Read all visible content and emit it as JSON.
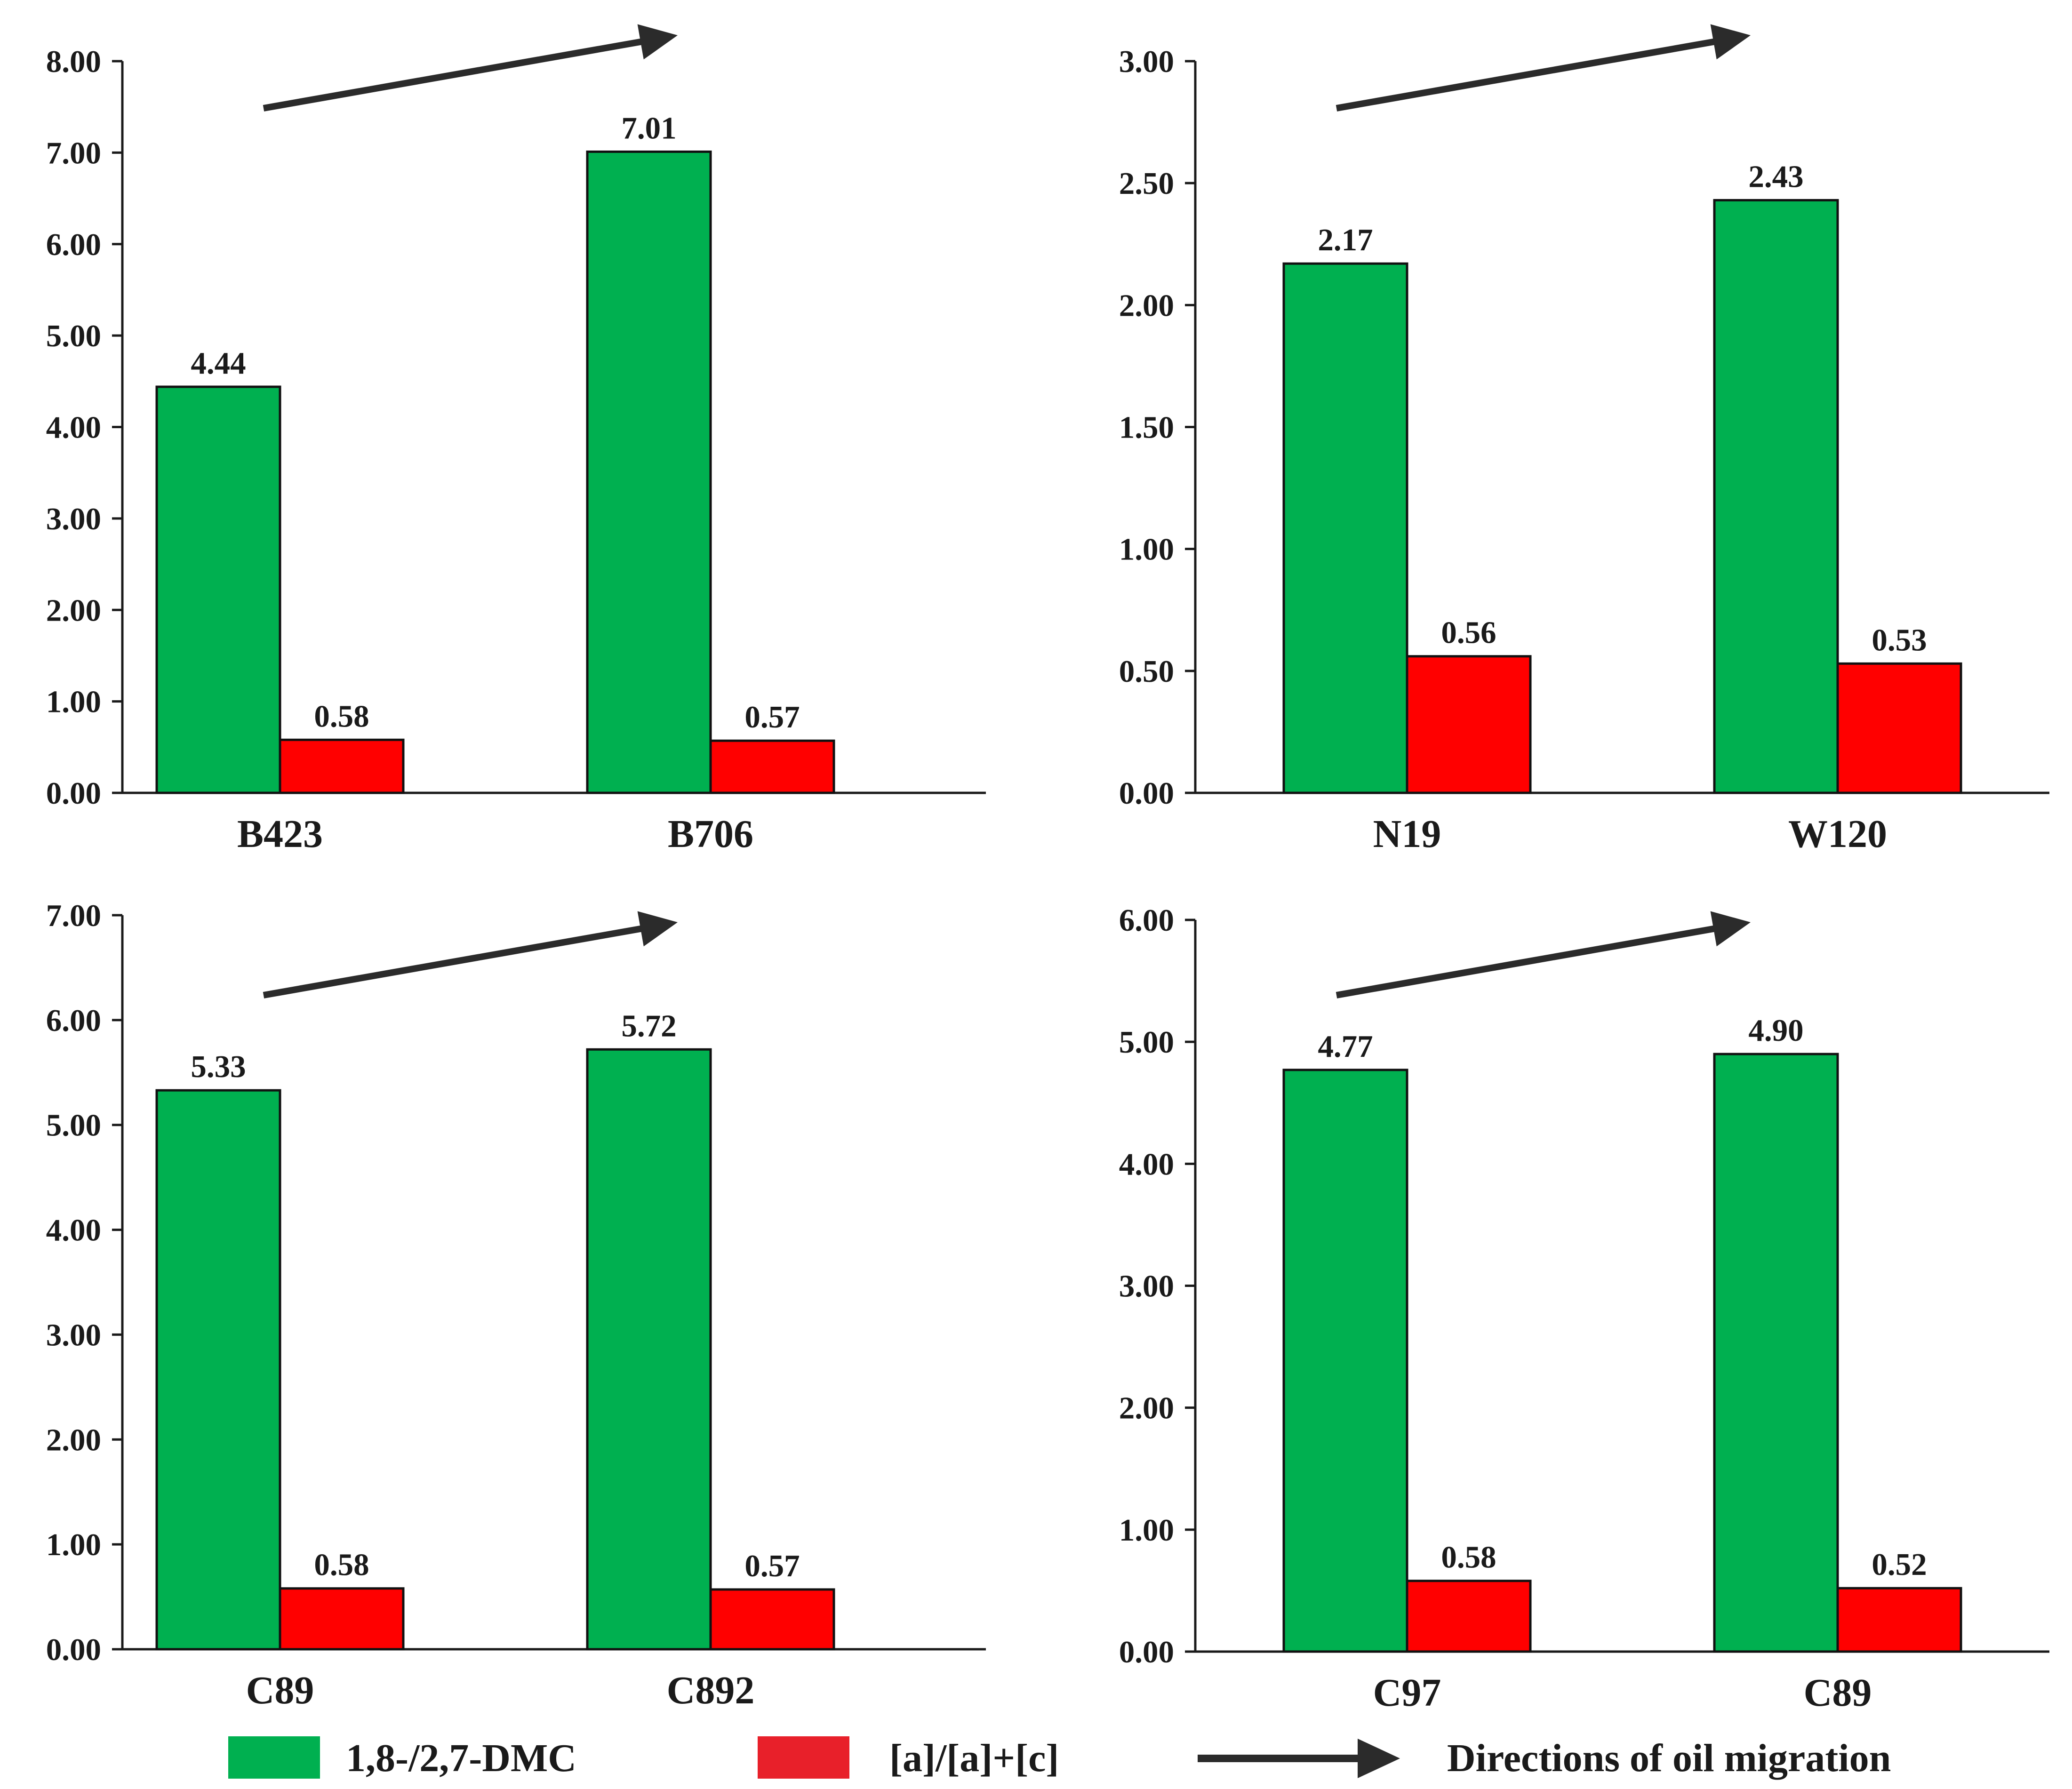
{
  "colors": {
    "green": "#00b050",
    "red": "#ff0000",
    "axis": "#1a1a1a",
    "arrow": "#2b2b2b"
  },
  "chart_data": [
    {
      "type": "bar",
      "categories": [
        "B423",
        "B706"
      ],
      "series": [
        {
          "name": "1,8-/2,7-DMC",
          "values": [
            4.44,
            7.01
          ],
          "labels": [
            "4.44",
            "7.01"
          ]
        },
        {
          "name": "[a]/[a]+[c]",
          "values": [
            0.58,
            0.57
          ],
          "labels": [
            "0.58",
            "0.57"
          ]
        }
      ],
      "ylim": [
        0,
        8
      ],
      "yticks": [
        "0.00",
        "1.00",
        "2.00",
        "3.00",
        "4.00",
        "5.00",
        "6.00",
        "7.00",
        "8.00"
      ],
      "annotation": "Directions of oil migration arrow"
    },
    {
      "type": "bar",
      "categories": [
        "N19",
        "W120"
      ],
      "series": [
        {
          "name": "1,8-/2,7-DMC",
          "values": [
            2.17,
            2.43
          ],
          "labels": [
            "2.17",
            "2.43"
          ]
        },
        {
          "name": "[a]/[a]+[c]",
          "values": [
            0.56,
            0.53
          ],
          "labels": [
            "0.56",
            "0.53"
          ]
        }
      ],
      "ylim": [
        0,
        3
      ],
      "yticks": [
        "0.00",
        "0.50",
        "1.00",
        "1.50",
        "2.00",
        "2.50",
        "3.00"
      ],
      "annotation": "Directions of oil migration arrow"
    },
    {
      "type": "bar",
      "categories": [
        "C89",
        "C892"
      ],
      "series": [
        {
          "name": "1,8-/2,7-DMC",
          "values": [
            5.33,
            5.72
          ],
          "labels": [
            "5.33",
            "5.72"
          ]
        },
        {
          "name": "[a]/[a]+[c]",
          "values": [
            0.58,
            0.57
          ],
          "labels": [
            "0.58",
            "0.57"
          ]
        }
      ],
      "ylim": [
        0,
        7
      ],
      "yticks": [
        "0.00",
        "1.00",
        "2.00",
        "3.00",
        "4.00",
        "5.00",
        "6.00",
        "7.00"
      ],
      "annotation": "Directions of oil migration arrow"
    },
    {
      "type": "bar",
      "categories": [
        "C97",
        "C89"
      ],
      "series": [
        {
          "name": "1,8-/2,7-DMC",
          "values": [
            4.77,
            4.9
          ],
          "labels": [
            "4.77",
            "4.90"
          ]
        },
        {
          "name": "[a]/[a]+[c]",
          "values": [
            0.58,
            0.52
          ],
          "labels": [
            "0.58",
            "0.52"
          ]
        }
      ],
      "ylim": [
        0,
        6
      ],
      "yticks": [
        "0.00",
        "1.00",
        "2.00",
        "3.00",
        "4.00",
        "5.00",
        "6.00"
      ],
      "annotation": "Directions of oil migration arrow"
    }
  ],
  "legend": {
    "series1_label": "1,8-/2,7-DMC",
    "series2_label": "[a]/[a]+[c]",
    "arrow_label": "Directions of oil migration"
  }
}
